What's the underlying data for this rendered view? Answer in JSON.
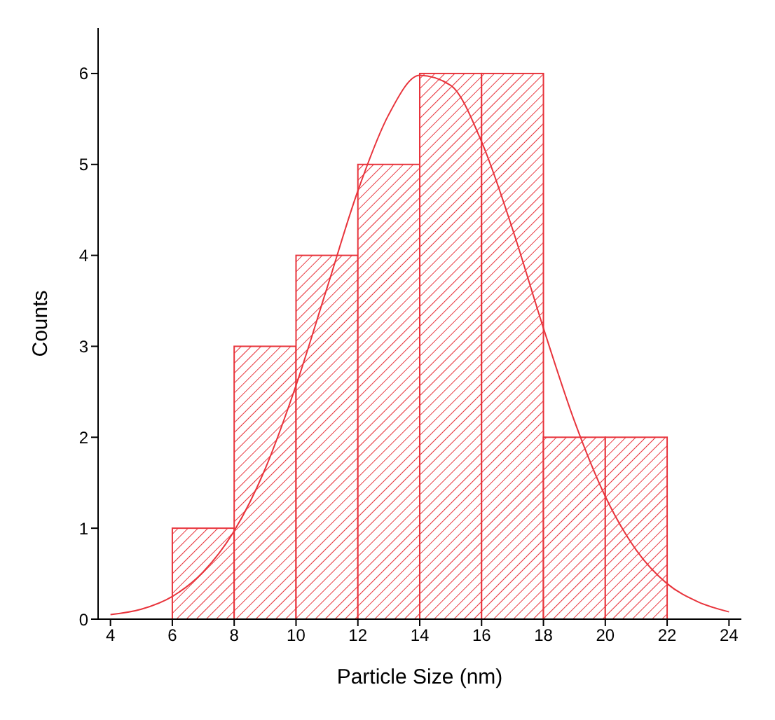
{
  "chart_data": {
    "type": "histogram",
    "xlabel": "Particle Size (nm)",
    "ylabel": "Counts",
    "bins": [
      6,
      8,
      10,
      12,
      14,
      16,
      18,
      20,
      22
    ],
    "values": [
      1,
      3,
      4,
      5,
      6,
      6,
      2,
      2
    ],
    "color": "#e8343c",
    "series": [
      {
        "type": "line",
        "color": "#e8343c",
        "x": [
          4,
          5,
          6,
          7,
          8,
          9,
          10,
          11,
          12,
          13,
          14,
          15,
          16,
          17,
          18,
          19,
          20,
          21,
          22,
          23,
          24
        ],
        "values": [
          0.05,
          0.11,
          0.25,
          0.52,
          0.97,
          1.65,
          2.57,
          3.64,
          4.71,
          5.55,
          5.98,
          5.87,
          5.25,
          4.29,
          3.2,
          2.18,
          1.35,
          0.76,
          0.39,
          0.19,
          0.08
        ]
      }
    ],
    "xlim": [
      3.6,
      24.4
    ],
    "xticks": [
      4,
      6,
      8,
      10,
      12,
      14,
      16,
      18,
      20,
      22,
      24
    ],
    "ylim": [
      0,
      6.5
    ],
    "yticks": [
      0,
      1,
      2,
      3,
      4,
      5,
      6
    ],
    "grid": false,
    "legend": false
  }
}
